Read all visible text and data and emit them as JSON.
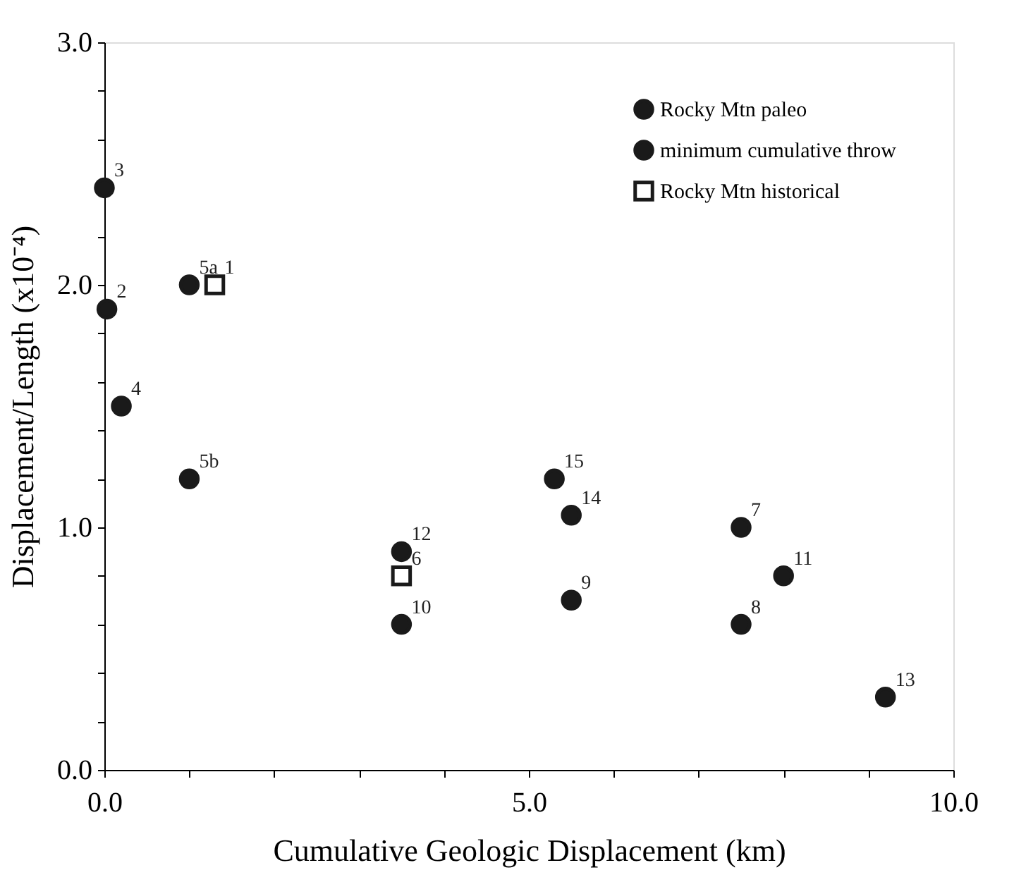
{
  "chart_data": {
    "type": "scatter",
    "xlabel": "Cumulative Geologic Displacement (km)",
    "ylabel": "Displacement/Length (x10⁻⁴)",
    "series": [
      {
        "name": "Rocky Mtn paleo",
        "color": "#1a1a1a",
        "marker": "circle",
        "x": [
          0,
          0.03,
          1.0,
          1.0,
          3.5,
          5.3,
          5.5,
          5.5,
          7.5,
          7.5,
          9.2
        ],
        "values": [
          2.4,
          1.9,
          2.0,
          1.2,
          0.6,
          1.2,
          1.05,
          0.7,
          1.0,
          0.6,
          0.3
        ]
      },
      {
        "name": "minimum cumulative throw",
        "color": "#1a1a1a",
        "marker": "circle",
        "x": [
          0.2,
          3.5,
          8.0
        ],
        "values": [
          1.5,
          0.9,
          0.8
        ]
      },
      {
        "name": "Rocky Mtn historical",
        "color": "#1a1a1a",
        "marker": "square",
        "x": [
          1.3,
          3.5
        ],
        "values": [
          2.0,
          0.8
        ]
      }
    ],
    "annotations": [
      {
        "text": "3",
        "x": 0,
        "y": 2.4
      },
      {
        "text": "2",
        "x": 0.03,
        "y": 1.9
      },
      {
        "text": "5a",
        "x": 1.0,
        "y": 2.0
      },
      {
        "text": "5b",
        "x": 1.0,
        "y": 1.2
      },
      {
        "text": "10",
        "x": 3.5,
        "y": 0.6
      },
      {
        "text": "15",
        "x": 5.3,
        "y": 1.2
      },
      {
        "text": "14",
        "x": 5.5,
        "y": 1.05
      },
      {
        "text": "9",
        "x": 5.5,
        "y": 0.7
      },
      {
        "text": "7",
        "x": 7.5,
        "y": 1.0
      },
      {
        "text": "8",
        "x": 7.5,
        "y": 0.6
      },
      {
        "text": "13",
        "x": 9.2,
        "y": 0.3
      },
      {
        "text": "4",
        "x": 0.2,
        "y": 1.5
      },
      {
        "text": "12",
        "x": 3.5,
        "y": 0.9
      },
      {
        "text": "11",
        "x": 8.0,
        "y": 0.8
      },
      {
        "text": "1",
        "x": 1.3,
        "y": 2.0
      },
      {
        "text": "6",
        "x": 3.5,
        "y": 0.8
      }
    ],
    "xlim": [
      0,
      10
    ],
    "ylim": [
      0,
      3
    ],
    "xticks": [
      {
        "value": 0,
        "label": "0.0"
      },
      {
        "value": 1,
        "label": null
      },
      {
        "value": 2,
        "label": null
      },
      {
        "value": 3,
        "label": null
      },
      {
        "value": 4,
        "label": null
      },
      {
        "value": 5,
        "label": "5.0"
      },
      {
        "value": 6,
        "label": null
      },
      {
        "value": 7,
        "label": null
      },
      {
        "value": 8,
        "label": null
      },
      {
        "value": 9,
        "label": null
      },
      {
        "value": 10,
        "label": "10.0"
      }
    ],
    "yticks": [
      {
        "value": 0,
        "label": "0.0"
      },
      {
        "value": 0.2,
        "label": null
      },
      {
        "value": 0.4,
        "label": null
      },
      {
        "value": 0.6,
        "label": null
      },
      {
        "value": 0.8,
        "label": null
      },
      {
        "value": 1,
        "label": "1.0"
      },
      {
        "value": 1.2,
        "label": null
      },
      {
        "value": 1.4,
        "label": null
      },
      {
        "value": 1.6,
        "label": null
      },
      {
        "value": 1.8,
        "label": null
      },
      {
        "value": 2,
        "label": "2.0"
      },
      {
        "value": 2.2,
        "label": null
      },
      {
        "value": 2.4,
        "label": null
      },
      {
        "value": 2.6,
        "label": null
      },
      {
        "value": 2.8,
        "label": null
      },
      {
        "value": 3,
        "label": "3.0"
      }
    ],
    "grid": false,
    "legend": "top right"
  }
}
